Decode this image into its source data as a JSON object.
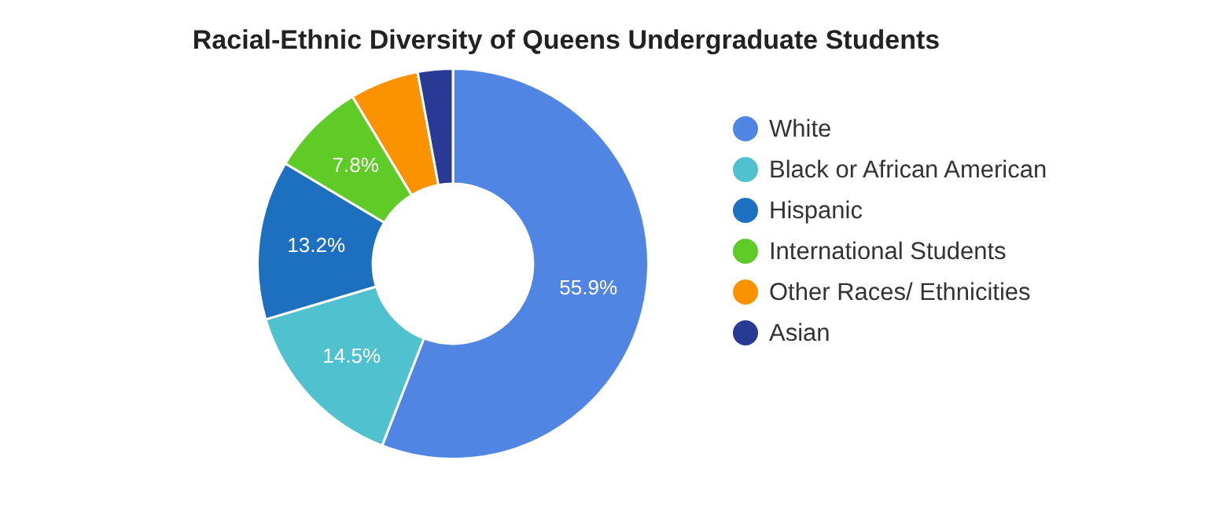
{
  "chart_data": {
    "type": "donut",
    "title": "Racial-Ethnic Diversity of Queens Undergraduate Students",
    "categories": [
      "White",
      "Black or African American",
      "Hispanic",
      "International Students",
      "Other Races/ Ethnicities",
      "Asian"
    ],
    "values": [
      55.9,
      14.5,
      13.2,
      7.8,
      5.7,
      2.9
    ],
    "value_labels": [
      "55.9%",
      "14.5%",
      "13.2%",
      "7.8%",
      null,
      null
    ],
    "colors": [
      "#5185e3",
      "#4fc1cf",
      "#1d70bf",
      "#5fcb26",
      "#fb9200",
      "#283a94"
    ],
    "legend": "right"
  }
}
